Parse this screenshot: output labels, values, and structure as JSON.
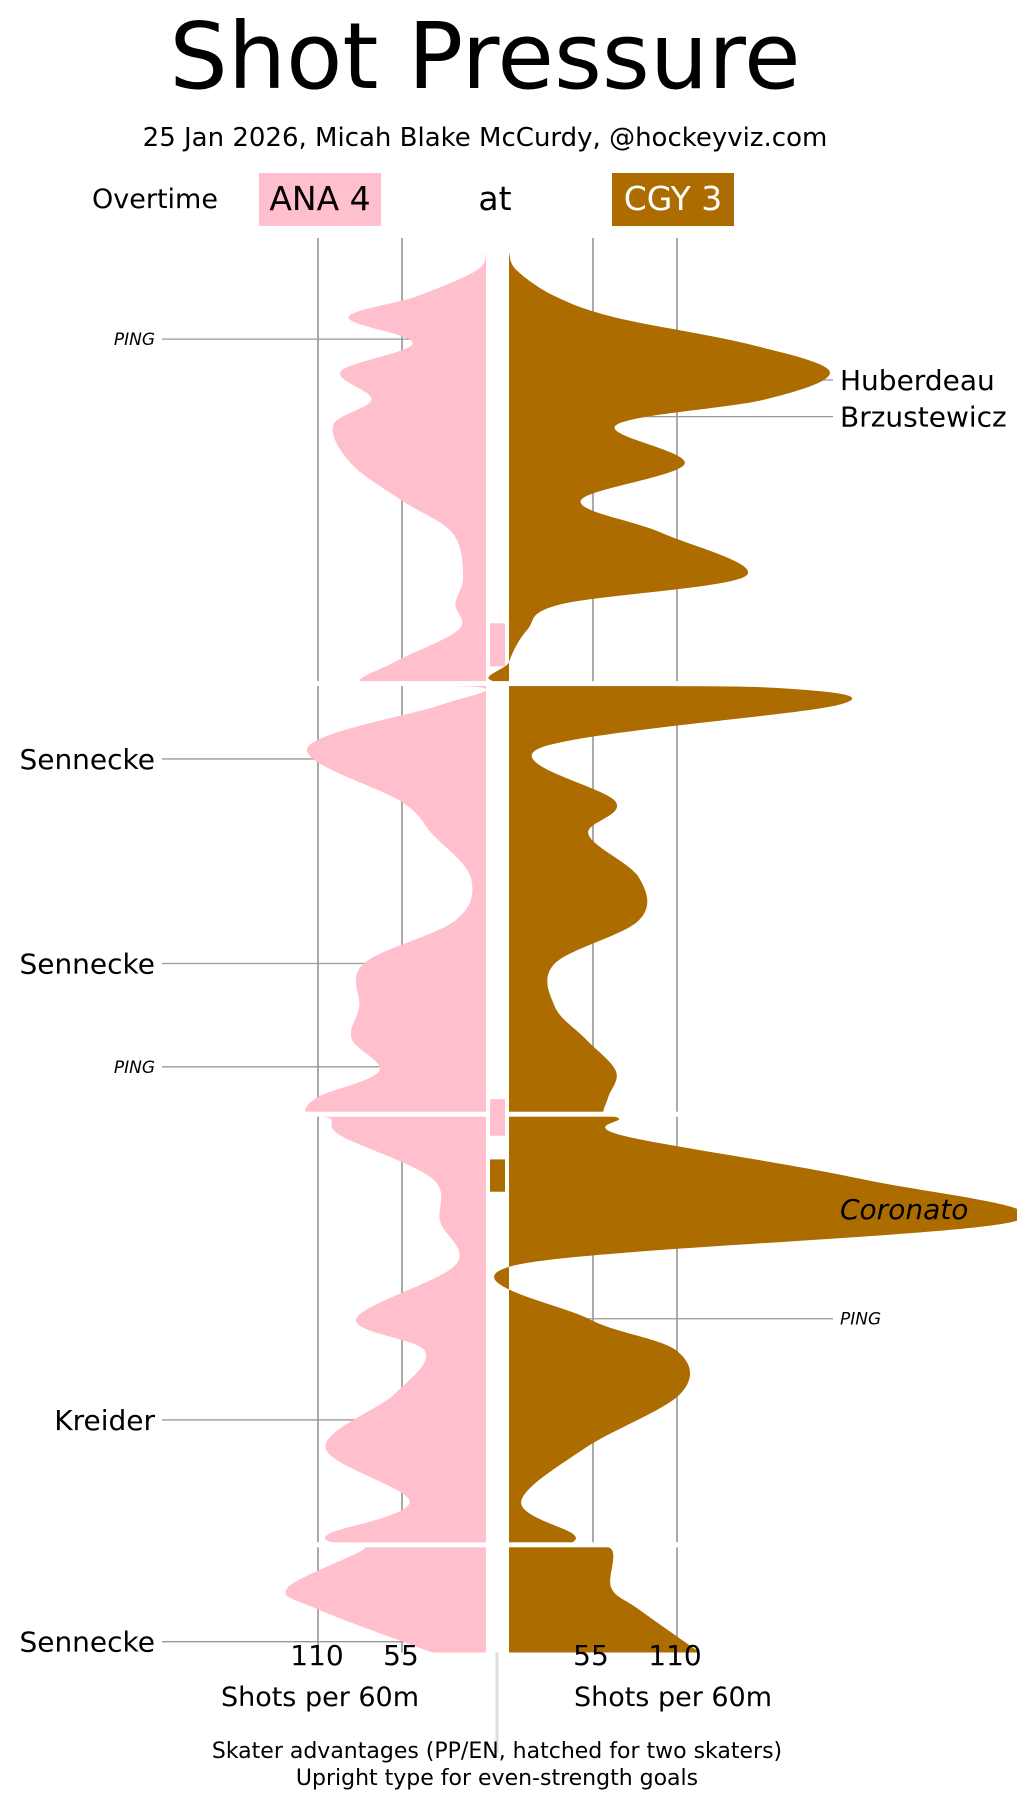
{
  "chart_data": {
    "type": "area",
    "title": "Shot Pressure",
    "subtitle": "25 Jan 2026, Micah Blake McCurdy, @hockeyviz.com",
    "period_label": "Overtime",
    "away": {
      "label": "ANA 4",
      "color": "#ffbfcc",
      "text_color": "#000000"
    },
    "at_label": "at",
    "home": {
      "label": "CGY 3",
      "color": "#ac6c00",
      "text_color": "#ffffff"
    },
    "x_unit_label": "Shots per 60m",
    "x_ticks": [
      55,
      110
    ],
    "x_tick_labels": [
      "55",
      "110"
    ],
    "xlim": [
      0,
      220
    ],
    "game_minutes": 65,
    "period_breaks": [
      20,
      40,
      60
    ],
    "series": [
      {
        "side": "away",
        "points": [
          [
            0,
            0
          ],
          [
            0.8,
            6
          ],
          [
            2,
            45
          ],
          [
            3,
            90
          ],
          [
            4.2,
            48
          ],
          [
            5.5,
            95
          ],
          [
            6.8,
            75
          ],
          [
            8,
            100
          ],
          [
            9.8,
            88
          ],
          [
            11.5,
            55
          ],
          [
            13,
            22
          ],
          [
            15,
            15
          ],
          [
            16.3,
            20
          ],
          [
            17.5,
            18
          ],
          [
            19,
            60
          ],
          [
            20,
            80
          ],
          [
            20.2,
            2
          ],
          [
            21,
            30
          ],
          [
            23,
            117
          ],
          [
            25.5,
            55
          ],
          [
            27,
            35
          ],
          [
            29,
            10
          ],
          [
            31,
            20
          ],
          [
            33,
            80
          ],
          [
            35,
            83
          ],
          [
            36.5,
            88
          ],
          [
            38,
            70
          ],
          [
            39.2,
            110
          ],
          [
            40,
            118
          ],
          [
            40.2,
            102
          ],
          [
            41,
            95
          ],
          [
            43,
            35
          ],
          [
            45,
            30
          ],
          [
            47,
            20
          ],
          [
            49.5,
            85
          ],
          [
            51,
            40
          ],
          [
            53,
            60
          ],
          [
            55.5,
            105
          ],
          [
            58,
            50
          ],
          [
            59.5,
            103
          ],
          [
            60,
            95
          ],
          [
            60.2,
            80
          ],
          [
            62,
            130
          ],
          [
            63,
            110
          ],
          [
            65,
            35
          ]
        ]
      },
      {
        "side": "home",
        "points": [
          [
            0,
            0
          ],
          [
            0.8,
            5
          ],
          [
            2,
            30
          ],
          [
            3,
            70
          ],
          [
            4.2,
            155
          ],
          [
            5.5,
            210
          ],
          [
            6.8,
            168
          ],
          [
            8,
            70
          ],
          [
            9.8,
            115
          ],
          [
            11.5,
            47
          ],
          [
            13,
            100
          ],
          [
            15,
            155
          ],
          [
            16.3,
            35
          ],
          [
            17.5,
            12
          ],
          [
            19,
            0
          ],
          [
            20,
            0
          ],
          [
            20.2,
            175
          ],
          [
            21,
            215
          ],
          [
            23,
            20
          ],
          [
            25.5,
            70
          ],
          [
            27,
            52
          ],
          [
            29,
            85
          ],
          [
            31,
            85
          ],
          [
            33,
            30
          ],
          [
            35,
            30
          ],
          [
            36.5,
            50
          ],
          [
            38,
            70
          ],
          [
            39.2,
            65
          ],
          [
            40,
            62
          ],
          [
            40.2,
            72
          ],
          [
            41,
            75
          ],
          [
            43,
            230
          ],
          [
            45,
            330
          ],
          [
            47,
            5
          ],
          [
            49.5,
            52
          ],
          [
            51,
            110
          ],
          [
            53,
            112
          ],
          [
            55.5,
            50
          ],
          [
            58,
            8
          ],
          [
            59.5,
            42
          ],
          [
            60,
            42
          ],
          [
            60.2,
            67
          ],
          [
            62,
            67
          ],
          [
            63,
            85
          ],
          [
            65,
            125
          ]
        ]
      }
    ],
    "skater_advantages": [
      {
        "team": "away",
        "start": 17.2,
        "end": 19.2
      },
      {
        "team": "away",
        "start": 39.3,
        "end": 41.0
      },
      {
        "team": "home",
        "start": 42.1,
        "end": 43.6
      }
    ],
    "annotations": [
      {
        "side": "away",
        "label": "PING",
        "minute": 4.0,
        "style": "ping"
      },
      {
        "side": "home",
        "label": "Huberdeau",
        "minute": 5.9,
        "style": "upright"
      },
      {
        "side": "home",
        "label": "Brzustewicz",
        "minute": 7.6,
        "style": "upright"
      },
      {
        "side": "away",
        "label": "Sennecke",
        "minute": 23.5,
        "style": "upright"
      },
      {
        "side": "away",
        "label": "Sennecke",
        "minute": 33.0,
        "style": "upright"
      },
      {
        "side": "away",
        "label": "PING",
        "minute": 37.8,
        "style": "ping"
      },
      {
        "side": "home",
        "label": "Coronato",
        "minute": 44.4,
        "style": "italic"
      },
      {
        "side": "home",
        "label": "PING",
        "minute": 49.5,
        "style": "ping"
      },
      {
        "side": "away",
        "label": "Kreider",
        "minute": 54.2,
        "style": "upright"
      },
      {
        "side": "away",
        "label": "Sennecke",
        "minute": 64.5,
        "style": "upright"
      }
    ],
    "footnote_lines": [
      "Skater advantages (PP/EN, hatched for two skaters)",
      "Upright type for even-strength goals"
    ]
  }
}
